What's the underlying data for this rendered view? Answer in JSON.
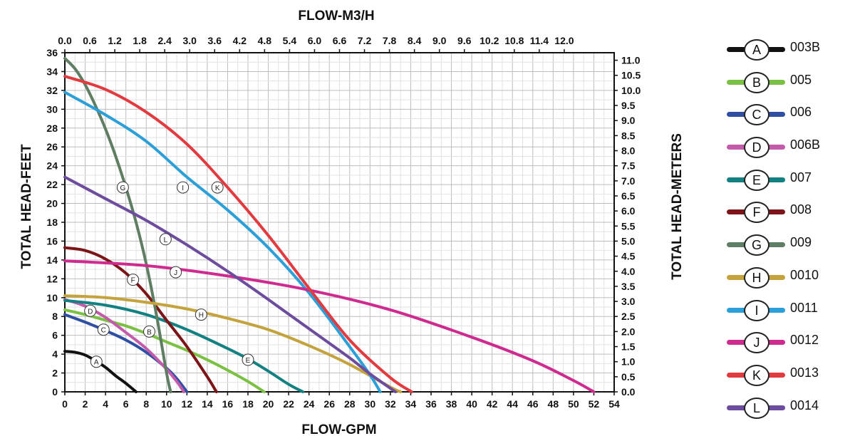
{
  "chart_data": {
    "type": "line",
    "title": "FLOW-M3/H",
    "xlabel": "FLOW-GPM",
    "ylabel": "TOTAL HEAD-FEET",
    "y2label": "TOTAL HEAD-METERS",
    "xlim": [
      0,
      54
    ],
    "ylim": [
      0,
      36
    ],
    "x2lim": [
      0,
      13.2
    ],
    "y2lim": [
      0,
      11.25
    ],
    "x_ticks": [
      "0",
      "2",
      "4",
      "6",
      "8",
      "10",
      "12",
      "14",
      "16",
      "18",
      "20",
      "22",
      "24",
      "26",
      "28",
      "30",
      "32",
      "34",
      "36",
      "38",
      "40",
      "42",
      "44",
      "46",
      "48",
      "50",
      "52",
      "54"
    ],
    "y_ticks": [
      "0",
      "2",
      "4",
      "6",
      "8",
      "10",
      "12",
      "14",
      "16",
      "18",
      "20",
      "22",
      "24",
      "26",
      "28",
      "30",
      "32",
      "34",
      "36"
    ],
    "x2_ticks": [
      "0.0",
      "0.6",
      "1.2",
      "1.8",
      "2.4",
      "3.0",
      "3.6",
      "4.2",
      "4.8",
      "5.4",
      "6.0",
      "6.6",
      "7.2",
      "7.8",
      "8.4",
      "9.0",
      "9.6",
      "10.2",
      "10.8",
      "11.4",
      "12.0"
    ],
    "y2_ticks": [
      "0.0",
      "0.5",
      "1.0",
      "1.5",
      "2.0",
      "2.5",
      "3.0",
      "3.5",
      "4.0",
      "4.5",
      "5.0",
      "5.5",
      "6.0",
      "6.5",
      "7.0",
      "7.5",
      "8.0",
      "8.5",
      "9.0",
      "9.5",
      "10.0",
      "10.5",
      "11.0"
    ],
    "grid": true,
    "legend_position": "right",
    "series": [
      {
        "key": "A",
        "name": "003B",
        "color": "#111111",
        "x": [
          0,
          1,
          2,
          3,
          4,
          5,
          6,
          7
        ],
        "y": [
          4.3,
          4.2,
          3.9,
          3.3,
          2.6,
          1.7,
          0.9,
          0
        ],
        "label_at": [
          3.1,
          3.2
        ]
      },
      {
        "key": "B",
        "name": "005",
        "color": "#7ac143",
        "x": [
          0,
          2,
          4,
          6,
          8,
          10,
          12,
          14,
          16,
          18,
          19.6
        ],
        "y": [
          8.7,
          8.2,
          7.6,
          7,
          6.2,
          5.3,
          4.4,
          3.4,
          2.3,
          1.1,
          0
        ],
        "label_at": [
          8.3,
          6.4
        ]
      },
      {
        "key": "C",
        "name": "006",
        "color": "#2e4fa3",
        "x": [
          0,
          2,
          4,
          6,
          8,
          10,
          11,
          12
        ],
        "y": [
          8.2,
          7.4,
          6.5,
          5.5,
          4.2,
          2.5,
          1.4,
          0
        ],
        "label_at": [
          3.8,
          6.6
        ]
      },
      {
        "key": "D",
        "name": "006B",
        "color": "#c45aaa",
        "x": [
          0,
          2,
          4,
          6,
          8,
          10,
          11,
          11.7
        ],
        "y": [
          9.8,
          9.1,
          7.9,
          6.3,
          4.6,
          2.4,
          1.1,
          0
        ],
        "label_at": [
          2.5,
          8.6
        ]
      },
      {
        "key": "E",
        "name": "007",
        "color": "#138182",
        "x": [
          0,
          4,
          8,
          12,
          16,
          18,
          20,
          22,
          23.4
        ],
        "y": [
          9.7,
          9.2,
          8.2,
          6.6,
          4.6,
          3.5,
          2.2,
          0.8,
          0
        ],
        "label_at": [
          18,
          3.4
        ]
      },
      {
        "key": "F",
        "name": "008",
        "color": "#7c1418",
        "x": [
          0,
          2,
          4,
          6,
          8,
          10,
          12,
          14,
          14.9
        ],
        "y": [
          15.3,
          15,
          14.1,
          12.6,
          10.4,
          7.6,
          4.8,
          1.6,
          0
        ],
        "label_at": [
          6.7,
          11.9
        ]
      },
      {
        "key": "G",
        "name": "009",
        "color": "#5e7d62",
        "x": [
          0,
          1,
          2,
          3,
          4,
          5,
          6,
          7,
          8,
          9,
          10,
          10.4
        ],
        "y": [
          35.4,
          34.3,
          32.6,
          30.4,
          27.9,
          25,
          21.7,
          18,
          13.6,
          8.2,
          2,
          0
        ],
        "label_at": [
          5.7,
          21.7
        ]
      },
      {
        "key": "H",
        "name": "0010",
        "color": "#c4a23c",
        "x": [
          0,
          4,
          8,
          12,
          16,
          20,
          24,
          28,
          32,
          33
        ],
        "y": [
          10.2,
          10,
          9.5,
          8.8,
          7.8,
          6.6,
          4.9,
          2.9,
          0.5,
          0
        ],
        "label_at": [
          13.4,
          8.2
        ]
      },
      {
        "key": "I",
        "name": "0011",
        "color": "#2b9fd8",
        "x": [
          0,
          4,
          8,
          12,
          16,
          20,
          24,
          28,
          30,
          31
        ],
        "y": [
          31.8,
          29.4,
          26.6,
          22.8,
          19.3,
          15.3,
          10.5,
          4.8,
          1.8,
          0
        ],
        "label_at": [
          11.6,
          21.7
        ]
      },
      {
        "key": "J",
        "name": "0012",
        "color": "#cf2a8f",
        "x": [
          0,
          8,
          16,
          24,
          32,
          40,
          46,
          50,
          52
        ],
        "y": [
          13.9,
          13.4,
          12.3,
          10.8,
          8.7,
          5.8,
          3.3,
          1.2,
          0
        ],
        "label_at": [
          10.9,
          12.7
        ]
      },
      {
        "key": "K",
        "name": "0013",
        "color": "#e23a3f",
        "x": [
          0,
          4,
          8,
          12,
          16,
          20,
          24,
          28,
          32,
          34.1
        ],
        "y": [
          33.5,
          32.1,
          29.7,
          26.3,
          21.7,
          16.6,
          11,
          5.5,
          1.5,
          0
        ],
        "label_at": [
          15,
          21.7
        ]
      },
      {
        "key": "L",
        "name": "0014",
        "color": "#6d4c9e",
        "x": [
          0,
          4,
          8,
          12,
          16,
          20,
          24,
          28,
          30,
          32.5
        ],
        "y": [
          22.8,
          20.5,
          18.2,
          15.6,
          12.8,
          9.8,
          6.7,
          3.6,
          1.9,
          0
        ],
        "label_at": [
          9.9,
          16.2
        ]
      }
    ]
  }
}
